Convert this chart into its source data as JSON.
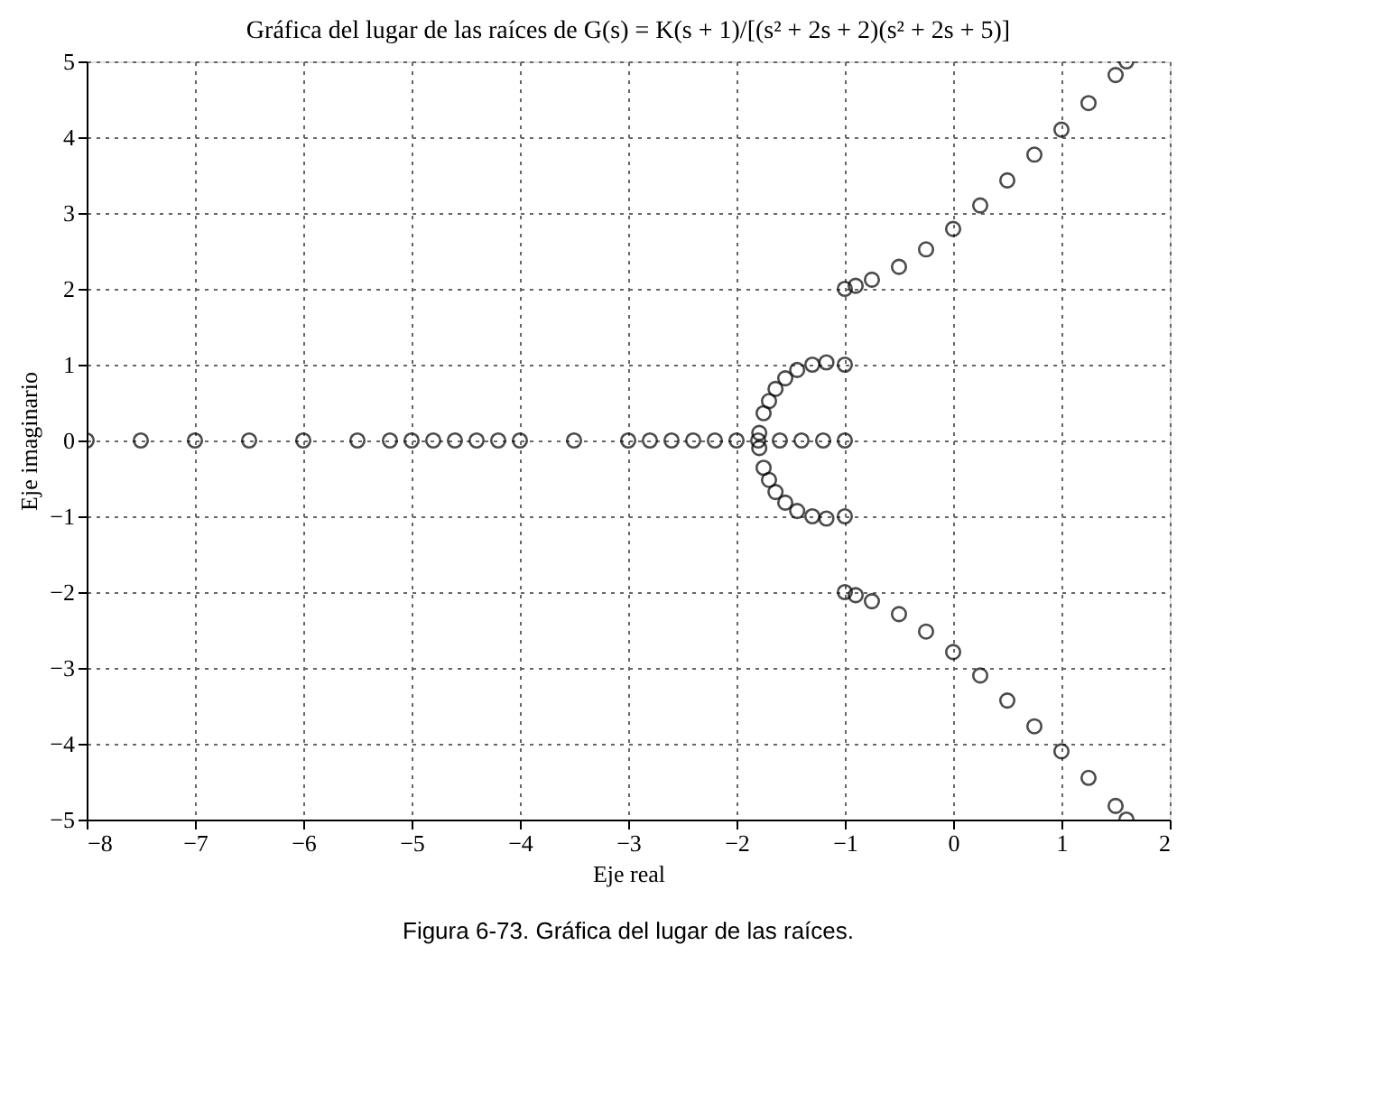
{
  "chart_data": {
    "type": "scatter",
    "title": "Gráfica del lugar de las raíces de G(s) = K(s + 1)/[(s² + 2s + 2)(s² + 2s + 5)]",
    "xlabel": "Eje real",
    "ylabel": "Eje imaginario",
    "annotations": [
      "Figura 6-73.    Gráfica del lugar de las raíces."
    ],
    "marker": "circle",
    "grid": true,
    "legend": false,
    "xlim": [
      -8,
      2
    ],
    "ylim": [
      -5,
      5
    ],
    "xticks": [
      {
        "value": -8,
        "label": "−8"
      },
      {
        "value": -7,
        "label": "−7"
      },
      {
        "value": -6,
        "label": "−6"
      },
      {
        "value": -5,
        "label": "−5"
      },
      {
        "value": -4,
        "label": "−4"
      },
      {
        "value": -3,
        "label": "−3"
      },
      {
        "value": -2,
        "label": "−2"
      },
      {
        "value": -1,
        "label": "−1"
      },
      0,
      1,
      2
    ],
    "yticks": [
      {
        "value": -5,
        "label": "−5"
      },
      {
        "value": -4,
        "label": "−4"
      },
      {
        "value": -3,
        "label": "−3"
      },
      {
        "value": -2,
        "label": "−2"
      },
      {
        "value": -1,
        "label": "−1"
      },
      0,
      1,
      2,
      3,
      4,
      5
    ],
    "series": [
      {
        "color": "#000000",
        "x": [
          -1,
          -0.9,
          -0.75,
          -0.5,
          -0.25,
          0,
          0.25,
          0.5,
          0.75,
          1,
          1.25,
          1.5,
          1.6
        ],
        "values": [
          2,
          2.04,
          2.12,
          2.29,
          2.52,
          2.79,
          3.1,
          3.43,
          3.77,
          4.1,
          4.45,
          4.82,
          5.0
        ]
      },
      {
        "color": "#000000",
        "x": [
          -1,
          -0.9,
          -0.75,
          -0.5,
          -0.25,
          0,
          0.25,
          0.5,
          0.75,
          1,
          1.25,
          1.5,
          1.6
        ],
        "values": [
          -2,
          -2.04,
          -2.12,
          -2.29,
          -2.52,
          -2.79,
          -3.1,
          -3.43,
          -3.77,
          -4.1,
          -4.45,
          -4.82,
          -5.0
        ]
      },
      {
        "color": "#000000",
        "x": [
          -1,
          -1.17,
          -1.3,
          -1.44,
          -1.55,
          -1.64,
          -1.7,
          -1.75,
          -1.79
        ],
        "values": [
          1,
          1.03,
          1.0,
          0.93,
          0.82,
          0.68,
          0.52,
          0.36,
          0.1
        ]
      },
      {
        "color": "#000000",
        "x": [
          -1,
          -1.17,
          -1.3,
          -1.44,
          -1.55,
          -1.64,
          -1.7,
          -1.75,
          -1.79
        ],
        "values": [
          -1,
          -1.03,
          -1.0,
          -0.93,
          -0.82,
          -0.68,
          -0.52,
          -0.36,
          -0.1
        ]
      },
      {
        "color": "#000000",
        "x": [
          -8,
          -7.5,
          -7,
          -6.5,
          -6,
          -5.5,
          -5.2,
          -5,
          -4.8,
          -4.6,
          -4.4,
          -4.2,
          -4,
          -3.5,
          -3,
          -2.8,
          -2.6,
          -2.4,
          -2.2,
          -2,
          -1.8,
          -1.6,
          -1.4,
          -1.2,
          -1
        ],
        "values": [
          0,
          0,
          0,
          0,
          0,
          0,
          0,
          0,
          0,
          0,
          0,
          0,
          0,
          0,
          0,
          0,
          0,
          0,
          0,
          0,
          0,
          0,
          0,
          0,
          0
        ]
      }
    ]
  }
}
